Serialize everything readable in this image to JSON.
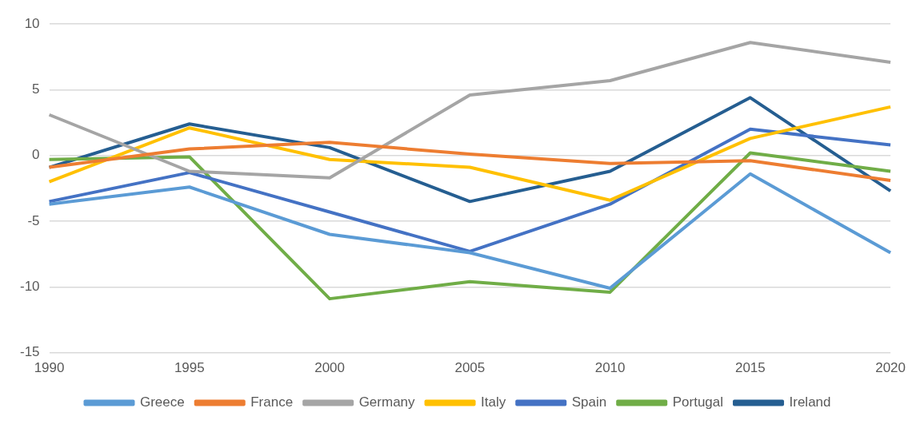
{
  "chart_data": {
    "type": "line",
    "categories": [
      "1990",
      "1995",
      "2000",
      "2005",
      "2010",
      "2015",
      "2020"
    ],
    "series": [
      {
        "name": "Greece",
        "color": "#5b9bd5",
        "values": [
          -3.7,
          -2.4,
          -6.0,
          -7.4,
          -10.1,
          -1.4,
          -7.4
        ]
      },
      {
        "name": "France",
        "color": "#ed7d31",
        "values": [
          -0.9,
          0.5,
          1.0,
          0.1,
          -0.6,
          -0.4,
          -1.9
        ]
      },
      {
        "name": "Germany",
        "color": "#a5a5a5",
        "values": [
          3.1,
          -1.2,
          -1.7,
          4.6,
          5.7,
          8.6,
          7.1
        ]
      },
      {
        "name": "Italy",
        "color": "#ffc000",
        "values": [
          -2.0,
          2.1,
          -0.3,
          -0.9,
          -3.4,
          1.3,
          3.7
        ]
      },
      {
        "name": "Spain",
        "color": "#4472c4",
        "values": [
          -3.5,
          -1.3,
          -4.3,
          -7.3,
          -3.7,
          2.0,
          0.8
        ]
      },
      {
        "name": "Portugal",
        "color": "#70ad47",
        "values": [
          -0.3,
          -0.1,
          -10.9,
          -9.6,
          -10.4,
          0.2,
          -1.2
        ]
      },
      {
        "name": "Ireland",
        "color": "#255e91",
        "values": [
          -0.9,
          2.4,
          0.6,
          -3.5,
          -1.2,
          4.4,
          -2.7
        ]
      }
    ],
    "ylim": [
      -15,
      10
    ],
    "yticks": [
      -15,
      -10,
      -5,
      0,
      5,
      10
    ],
    "grid": "y",
    "legend": "bottom"
  }
}
